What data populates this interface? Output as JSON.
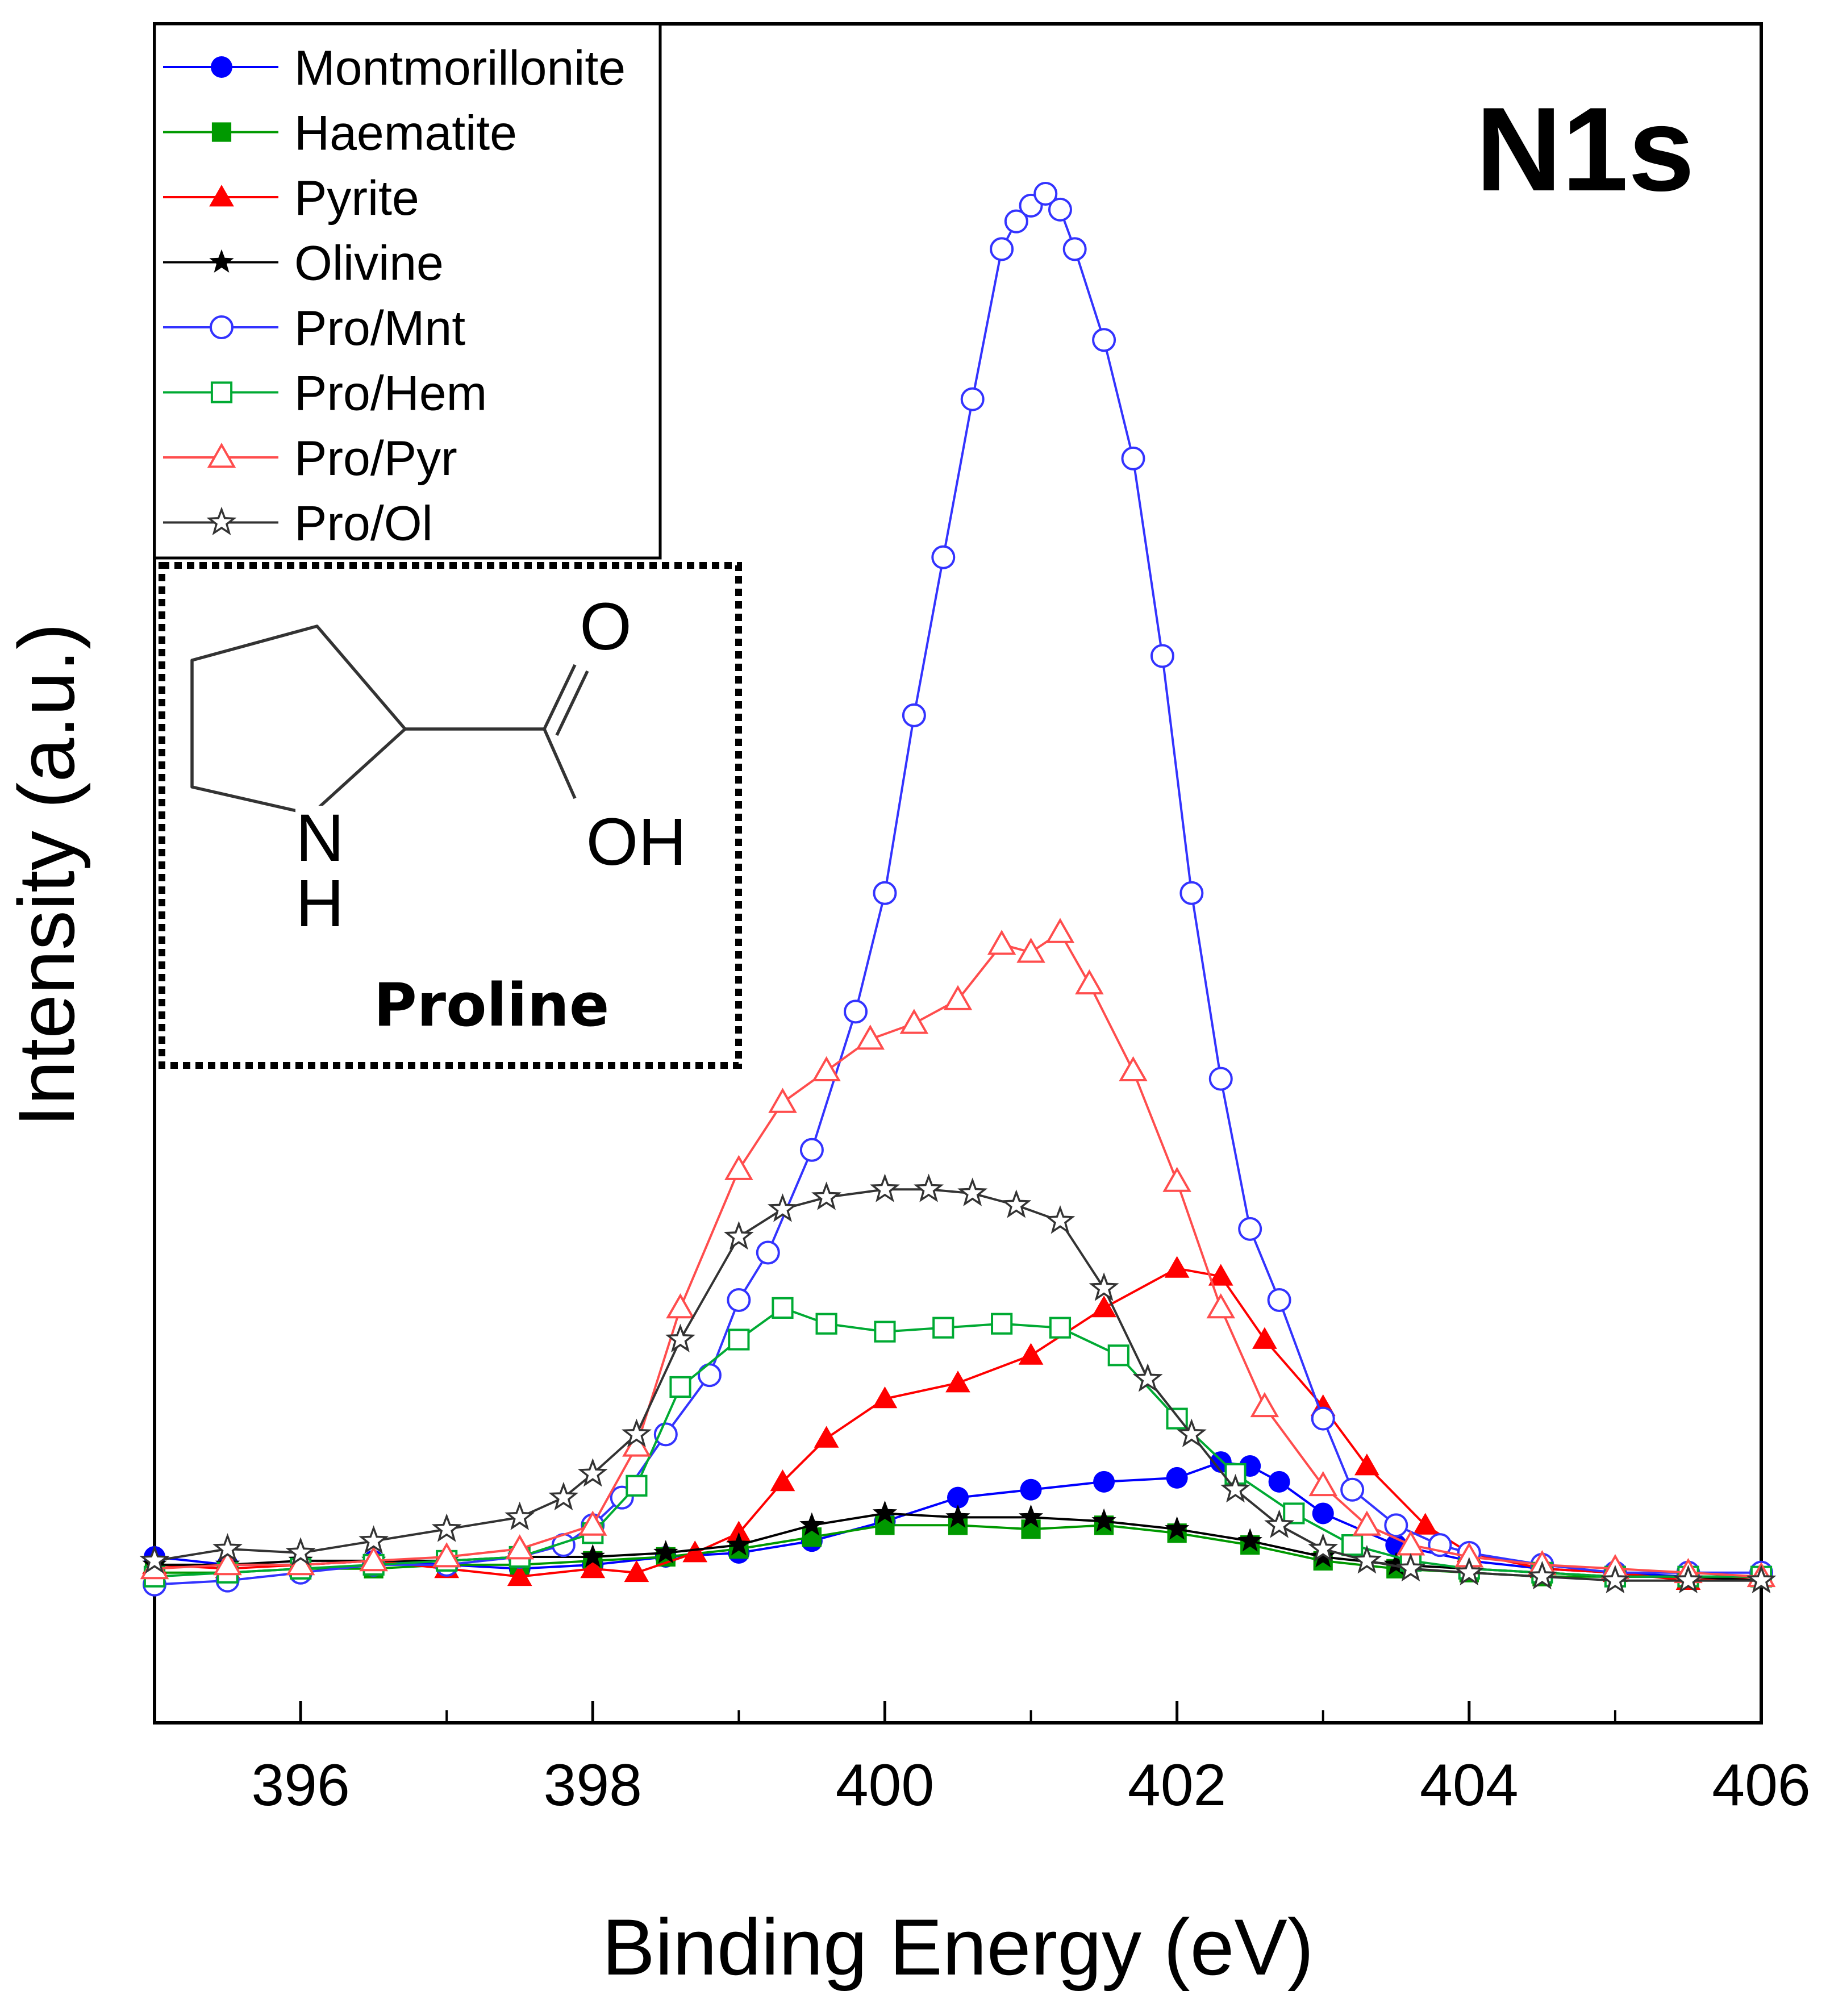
{
  "chart_data": {
    "type": "line",
    "title": "N1s",
    "xlabel": "Binding Energy (eV)",
    "ylabel": "Intensity (a.u.)",
    "xlim": [
      395,
      406
    ],
    "ylim": [
      -0.35,
      3.95
    ],
    "x_ticks": [
      "396",
      "398",
      "400",
      "402",
      "404",
      "406"
    ],
    "grid": false,
    "legend_position": "top-left",
    "inset": {
      "molecule": "Proline",
      "labels": {
        "carbonyl_o": "O",
        "hydroxyl": "OH",
        "amine_n": "N",
        "amine_h": "H"
      }
    },
    "series": [
      {
        "name": "Montmorillonite",
        "color": "#0000ff",
        "marker": "circle",
        "filled": true,
        "x": [
          395.0,
          395.5,
          396.0,
          396.5,
          397.0,
          397.5,
          398.0,
          398.5,
          399.0,
          399.5,
          400.0,
          400.5,
          401.0,
          401.5,
          402.0,
          402.3,
          402.5,
          402.7,
          403.0,
          403.5,
          404.0,
          404.5,
          405.0,
          405.5,
          406.0
        ],
        "values": [
          0.07,
          0.05,
          0.05,
          0.06,
          0.05,
          0.04,
          0.05,
          0.07,
          0.08,
          0.11,
          0.16,
          0.22,
          0.24,
          0.26,
          0.27,
          0.31,
          0.3,
          0.26,
          0.18,
          0.1,
          0.06,
          0.04,
          0.03,
          0.02,
          0.02
        ]
      },
      {
        "name": "Haematite",
        "color": "#009900",
        "marker": "square",
        "filled": true,
        "x": [
          395.0,
          395.5,
          396.0,
          396.5,
          397.0,
          397.5,
          398.0,
          398.5,
          399.0,
          399.5,
          400.0,
          400.5,
          401.0,
          401.5,
          402.0,
          402.5,
          403.0,
          403.5,
          404.0,
          404.5,
          405.0,
          405.5,
          406.0
        ],
        "values": [
          0.03,
          0.03,
          0.04,
          0.04,
          0.05,
          0.05,
          0.06,
          0.07,
          0.09,
          0.12,
          0.15,
          0.15,
          0.14,
          0.15,
          0.13,
          0.1,
          0.06,
          0.04,
          0.03,
          0.02,
          0.02,
          0.02,
          0.02
        ]
      },
      {
        "name": "Pyrite",
        "color": "#ff0000",
        "marker": "triangle",
        "filled": true,
        "x": [
          395.0,
          395.5,
          396.0,
          396.5,
          397.0,
          397.5,
          398.0,
          398.3,
          398.7,
          399.0,
          399.3,
          399.6,
          400.0,
          400.5,
          401.0,
          401.5,
          402.0,
          402.3,
          402.6,
          403.0,
          403.3,
          403.7,
          404.0,
          404.5,
          405.0,
          405.5,
          406.0
        ],
        "values": [
          0.05,
          0.04,
          0.05,
          0.06,
          0.04,
          0.02,
          0.04,
          0.03,
          0.08,
          0.13,
          0.26,
          0.37,
          0.47,
          0.51,
          0.58,
          0.7,
          0.8,
          0.78,
          0.62,
          0.45,
          0.3,
          0.15,
          0.08,
          0.04,
          0.03,
          0.01,
          0.02
        ]
      },
      {
        "name": "Olivine",
        "color": "#000000",
        "marker": "star",
        "filled": true,
        "x": [
          395.0,
          395.5,
          396.0,
          396.5,
          397.0,
          397.5,
          398.0,
          398.5,
          399.0,
          399.5,
          400.0,
          400.5,
          401.0,
          401.5,
          402.0,
          402.5,
          403.0,
          403.5,
          404.0,
          404.5,
          405.0,
          405.5,
          406.0
        ],
        "values": [
          0.05,
          0.05,
          0.06,
          0.06,
          0.06,
          0.07,
          0.07,
          0.08,
          0.1,
          0.15,
          0.18,
          0.17,
          0.17,
          0.16,
          0.14,
          0.11,
          0.07,
          0.05,
          0.04,
          0.03,
          0.02,
          0.02,
          0.01
        ]
      },
      {
        "name": "Pro/Mnt",
        "color": "#3333ff",
        "marker": "circle",
        "filled": false,
        "x": [
          395.0,
          395.5,
          396.0,
          396.5,
          397.0,
          397.5,
          397.8,
          398.0,
          398.2,
          398.5,
          398.8,
          399.0,
          399.2,
          399.5,
          399.8,
          400.0,
          400.2,
          400.4,
          400.6,
          400.8,
          400.9,
          401.0,
          401.1,
          401.2,
          401.3,
          401.5,
          401.7,
          401.9,
          402.1,
          402.3,
          402.5,
          402.7,
          403.0,
          403.2,
          403.5,
          403.8,
          404.0,
          404.5,
          405.0,
          405.5,
          406.0
        ],
        "values": [
          0.0,
          0.01,
          0.03,
          0.05,
          0.05,
          0.07,
          0.1,
          0.15,
          0.22,
          0.38,
          0.53,
          0.72,
          0.84,
          1.1,
          1.45,
          1.75,
          2.2,
          2.6,
          3.0,
          3.38,
          3.45,
          3.49,
          3.52,
          3.48,
          3.38,
          3.15,
          2.85,
          2.35,
          1.75,
          1.28,
          0.9,
          0.72,
          0.42,
          0.24,
          0.15,
          0.1,
          0.08,
          0.05,
          0.03,
          0.03,
          0.03
        ]
      },
      {
        "name": "Pro/Hem",
        "color": "#00aa33",
        "marker": "square",
        "filled": false,
        "x": [
          395.0,
          395.5,
          396.0,
          396.5,
          397.0,
          397.5,
          398.0,
          398.3,
          398.6,
          399.0,
          399.3,
          399.6,
          400.0,
          400.4,
          400.8,
          401.2,
          401.6,
          402.0,
          402.4,
          402.8,
          403.2,
          403.6,
          404.0,
          404.5,
          405.0,
          405.5,
          406.0
        ],
        "values": [
          0.02,
          0.03,
          0.04,
          0.05,
          0.06,
          0.07,
          0.13,
          0.25,
          0.5,
          0.62,
          0.7,
          0.66,
          0.64,
          0.65,
          0.66,
          0.65,
          0.58,
          0.42,
          0.28,
          0.18,
          0.1,
          0.06,
          0.04,
          0.03,
          0.02,
          0.02,
          0.02
        ]
      },
      {
        "name": "Pro/Pyr",
        "color": "#ff4d4d",
        "marker": "triangle",
        "filled": false,
        "x": [
          395.0,
          395.5,
          396.0,
          396.5,
          397.0,
          397.5,
          398.0,
          398.3,
          398.6,
          399.0,
          399.3,
          399.6,
          399.9,
          400.2,
          400.5,
          400.8,
          401.0,
          401.2,
          401.4,
          401.7,
          402.0,
          402.3,
          402.6,
          403.0,
          403.3,
          403.6,
          404.0,
          404.5,
          405.0,
          405.5,
          406.0
        ],
        "values": [
          0.04,
          0.05,
          0.05,
          0.06,
          0.07,
          0.09,
          0.15,
          0.35,
          0.7,
          1.05,
          1.22,
          1.3,
          1.38,
          1.42,
          1.48,
          1.62,
          1.6,
          1.65,
          1.52,
          1.3,
          1.02,
          0.7,
          0.45,
          0.25,
          0.15,
          0.1,
          0.07,
          0.05,
          0.04,
          0.03,
          0.02
        ]
      },
      {
        "name": "Pro/Ol",
        "color": "#333333",
        "marker": "star",
        "filled": false,
        "x": [
          395.0,
          395.5,
          396.0,
          396.5,
          397.0,
          397.5,
          397.8,
          398.0,
          398.3,
          398.6,
          399.0,
          399.3,
          399.6,
          400.0,
          400.3,
          400.6,
          400.9,
          401.2,
          401.5,
          401.8,
          402.1,
          402.4,
          402.7,
          403.0,
          403.3,
          403.6,
          404.0,
          404.5,
          405.0,
          405.5,
          406.0
        ],
        "values": [
          0.06,
          0.09,
          0.08,
          0.11,
          0.14,
          0.17,
          0.22,
          0.28,
          0.38,
          0.62,
          0.88,
          0.95,
          0.98,
          1.0,
          1.0,
          0.99,
          0.96,
          0.92,
          0.75,
          0.52,
          0.38,
          0.24,
          0.15,
          0.09,
          0.06,
          0.04,
          0.03,
          0.02,
          0.01,
          0.01,
          0.01
        ]
      }
    ]
  }
}
